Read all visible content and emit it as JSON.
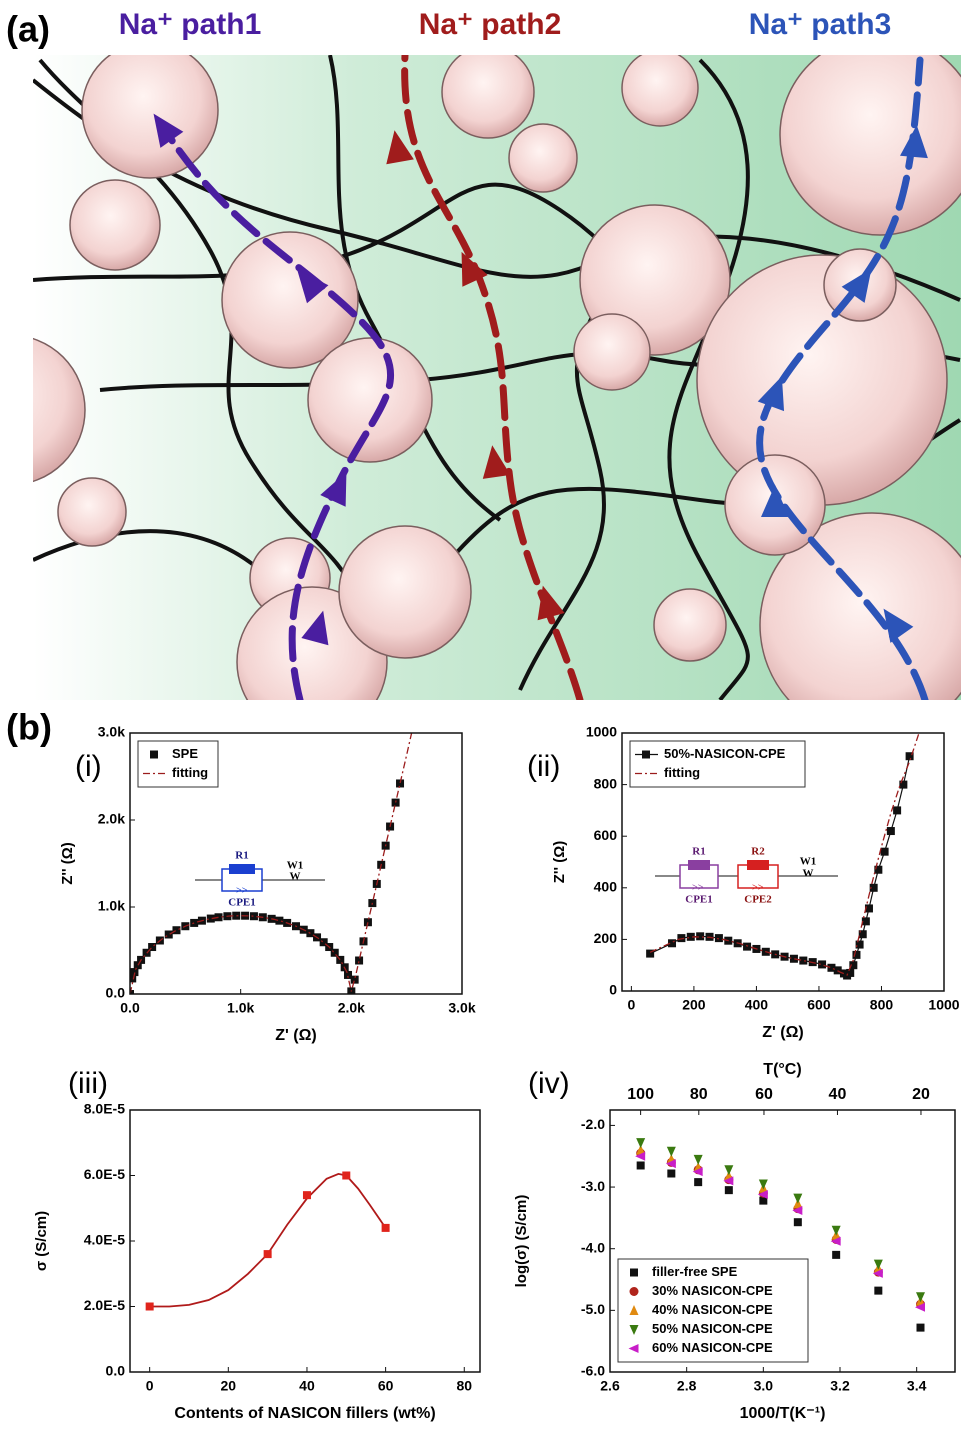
{
  "figure": {
    "panel_a": {
      "label": "(a)",
      "paths": [
        "Na⁺ path1",
        "Na⁺ path2",
        "Na⁺ path3"
      ]
    },
    "panel_b": {
      "label": "(b)"
    }
  },
  "chart_data": [
    {
      "type": "scatter",
      "panel_label": "(i)",
      "xlabel": "Z' (Ω)",
      "ylabel": "Z'' (Ω)",
      "xlim": [
        0,
        3000
      ],
      "ylim": [
        0,
        3000
      ],
      "xticks": [
        {
          "value": 0,
          "label": "0.0"
        },
        {
          "value": 1000,
          "label": "1.0k"
        },
        {
          "value": 2000,
          "label": "2.0k"
        },
        {
          "value": 3000,
          "label": "3.0k"
        }
      ],
      "yticks": [
        {
          "value": 0,
          "label": "0.0"
        },
        {
          "value": 1000,
          "label": "1.0k"
        },
        {
          "value": 2000,
          "label": "2.0k"
        },
        {
          "value": 3000,
          "label": "3.0k"
        }
      ],
      "legend": "upper left",
      "inset": {
        "labels": [
          "R1",
          "W1",
          "W",
          "CPE1"
        ]
      },
      "series": [
        {
          "name": "SPE",
          "color": "#111111",
          "marker": "square",
          "style": "markers",
          "x": [
            0,
            20,
            40,
            70,
            100,
            150,
            200,
            270,
            350,
            420,
            500,
            580,
            650,
            730,
            800,
            880,
            960,
            1040,
            1120,
            1200,
            1280,
            1350,
            1420,
            1500,
            1570,
            1630,
            1690,
            1750,
            1800,
            1850,
            1900,
            1940,
            1970,
            2000,
            2030,
            2070,
            2110,
            2150,
            2190,
            2230,
            2270,
            2310,
            2350,
            2400,
            2440
          ],
          "values": [
            0,
            179,
            252,
            331,
            392,
            474,
            540,
            615,
            684,
            733,
            779,
            817,
            843,
            867,
            882,
            894,
            900,
            900,
            894,
            882,
            864,
            843,
            817,
            779,
            739,
            699,
            651,
            595,
            540,
            474,
            392,
            307,
            219,
            30,
            165,
            385,
            605,
            825,
            1045,
            1265,
            1485,
            1705,
            1925,
            2200,
            2420
          ]
        },
        {
          "name": "fitting",
          "color": "#9b1c1c",
          "style": "dashdot",
          "x": [
            0,
            50,
            100,
            200,
            300,
            400,
            500,
            600,
            700,
            800,
            900,
            1000,
            1100,
            1200,
            1300,
            1400,
            1500,
            1600,
            1700,
            1800,
            1900,
            1960,
            2000,
            2040,
            2100,
            2200,
            2300,
            2400,
            2500,
            2545
          ],
          "values": [
            0,
            281,
            392,
            540,
            642,
            720,
            779,
            825,
            859,
            882,
            896,
            900,
            896,
            882,
            859,
            825,
            779,
            720,
            642,
            540,
            392,
            252,
            30,
            220,
            550,
            1100,
            1650,
            2200,
            2750,
            3000
          ]
        }
      ]
    },
    {
      "type": "scatter",
      "panel_label": "(ii)",
      "xlabel": "Z' (Ω)",
      "ylabel": "Z'' (Ω)",
      "xlim": [
        -30,
        1000
      ],
      "ylim": [
        0,
        1000
      ],
      "xticks": [
        0,
        200,
        400,
        600,
        800,
        1000
      ],
      "yticks": [
        0,
        200,
        400,
        600,
        800,
        1000
      ],
      "legend": "upper left",
      "inset": {
        "labels": [
          "R1",
          "R2",
          "W1",
          "W",
          "CPE1",
          "CPE2"
        ]
      },
      "series": [
        {
          "name": "50%-NASICON-CPE",
          "color": "#111111",
          "marker": "square",
          "style": "line+markers",
          "x": [
            60,
            130,
            160,
            190,
            220,
            250,
            280,
            310,
            340,
            370,
            400,
            430,
            460,
            490,
            520,
            550,
            580,
            610,
            640,
            660,
            680,
            690,
            700,
            710,
            720,
            730,
            740,
            750,
            760,
            775,
            790,
            810,
            830,
            850,
            870,
            890
          ],
          "values": [
            145,
            185,
            205,
            210,
            212,
            210,
            205,
            195,
            185,
            172,
            163,
            152,
            142,
            133,
            125,
            118,
            112,
            103,
            90,
            80,
            68,
            60,
            70,
            100,
            140,
            180,
            220,
            270,
            320,
            400,
            470,
            540,
            620,
            700,
            800,
            910
          ]
        },
        {
          "name": "fitting",
          "color": "#9b1c1c",
          "style": "dashdot",
          "x": [
            60,
            100,
            150,
            200,
            250,
            300,
            350,
            400,
            450,
            500,
            550,
            600,
            640,
            670,
            690,
            710,
            740,
            770,
            800,
            830,
            860,
            890,
            920
          ],
          "values": [
            150,
            172,
            200,
            210,
            208,
            198,
            183,
            163,
            145,
            130,
            118,
            105,
            90,
            72,
            62,
            120,
            270,
            420,
            560,
            690,
            800,
            890,
            1000
          ]
        }
      ]
    },
    {
      "type": "scatter",
      "panel_label": "(iii)",
      "xlabel": "Contents of NASICON fillers (wt%)",
      "ylabel": "σ (S/cm)",
      "xlim": [
        -5,
        84
      ],
      "ylim": [
        0,
        8e-05
      ],
      "xticks": [
        0,
        20,
        40,
        60,
        80
      ],
      "yticks": [
        {
          "value": 0,
          "label": "0.0"
        },
        {
          "value": 2e-05,
          "label": "2.0E-5"
        },
        {
          "value": 4e-05,
          "label": "4.0E-5"
        },
        {
          "value": 6e-05,
          "label": "6.0E-5"
        },
        {
          "value": 8e-05,
          "label": "8.0E-5"
        }
      ],
      "series": [
        {
          "color": "#b01a1a",
          "style": "line",
          "x": [
            0,
            5,
            10,
            15,
            20,
            25,
            30,
            35,
            40,
            45,
            48,
            50,
            53,
            56,
            60
          ],
          "values": [
            2e-05,
            2e-05,
            2.05e-05,
            2.2e-05,
            2.5e-05,
            3e-05,
            3.6e-05,
            4.5e-05,
            5.3e-05,
            5.9e-05,
            6.05e-05,
            6e-05,
            5.6e-05,
            5.1e-05,
            4.4e-05
          ]
        },
        {
          "color": "#e0241c",
          "marker": "square",
          "style": "markers",
          "x": [
            0,
            30,
            40,
            50,
            60
          ],
          "values": [
            2e-05,
            3.6e-05,
            5.4e-05,
            6e-05,
            4.4e-05
          ]
        }
      ]
    },
    {
      "type": "scatter",
      "panel_label": "(iv)",
      "xlabel": "1000/T(K⁻¹)",
      "ylabel": "log(σ) (S/cm)",
      "x2label": "T(°C)",
      "xlim": [
        2.6,
        3.5
      ],
      "ylim": [
        -6,
        -1.75
      ],
      "xticks": [
        2.6,
        2.8,
        {
          "value": 3,
          "label": "3.0"
        },
        3.2,
        3.4
      ],
      "x2ticks": [
        100,
        80,
        60,
        40,
        20
      ],
      "yticks": [
        {
          "value": -2,
          "label": "-2.0"
        },
        {
          "value": -3,
          "label": "-3.0"
        },
        {
          "value": -4,
          "label": "-4.0"
        },
        {
          "value": -5,
          "label": "-5.0"
        },
        {
          "value": -6,
          "label": "-6.0"
        }
      ],
      "legend": "lower left",
      "series": [
        {
          "name": "filler-free SPE",
          "color": "#111111",
          "marker": "square",
          "style": "markers",
          "x": [
            2.68,
            2.76,
            2.83,
            2.91,
            3.0,
            3.09,
            3.19,
            3.3,
            3.41
          ],
          "values": [
            -2.65,
            -2.78,
            -2.92,
            -3.05,
            -3.22,
            -3.57,
            -4.1,
            -4.68,
            -5.28
          ]
        },
        {
          "name": "30% NASICON-CPE",
          "color": "#b0241c",
          "marker": "circle",
          "style": "markers",
          "x": [
            2.68,
            2.76,
            2.83,
            2.91,
            3.0,
            3.09,
            3.19,
            3.3,
            3.41
          ],
          "values": [
            -2.45,
            -2.6,
            -2.72,
            -2.88,
            -3.1,
            -3.35,
            -3.85,
            -4.38,
            -4.9
          ]
        },
        {
          "name": "40% NASICON-CPE",
          "color": "#e08a10",
          "marker": "triangle-up",
          "style": "markers",
          "x": [
            2.68,
            2.76,
            2.83,
            2.91,
            3.0,
            3.09,
            3.19,
            3.3,
            3.41
          ],
          "values": [
            -2.4,
            -2.55,
            -2.68,
            -2.82,
            -3.02,
            -3.27,
            -3.78,
            -4.32,
            -4.85
          ]
        },
        {
          "name": "50% NASICON-CPE",
          "color": "#3a7a10",
          "marker": "triangle-down",
          "style": "markers",
          "x": [
            2.68,
            2.76,
            2.83,
            2.91,
            3.0,
            3.09,
            3.19,
            3.3,
            3.41
          ],
          "values": [
            -2.28,
            -2.42,
            -2.55,
            -2.72,
            -2.95,
            -3.18,
            -3.7,
            -4.25,
            -4.78
          ]
        },
        {
          "name": "60% NASICON-CPE",
          "color": "#c81ec8",
          "marker": "triangle-left",
          "style": "markers",
          "x": [
            2.68,
            2.76,
            2.83,
            2.91,
            3.0,
            3.09,
            3.19,
            3.3,
            3.41
          ],
          "values": [
            -2.5,
            -2.62,
            -2.75,
            -2.9,
            -3.12,
            -3.38,
            -3.88,
            -4.4,
            -4.95
          ]
        }
      ]
    }
  ]
}
